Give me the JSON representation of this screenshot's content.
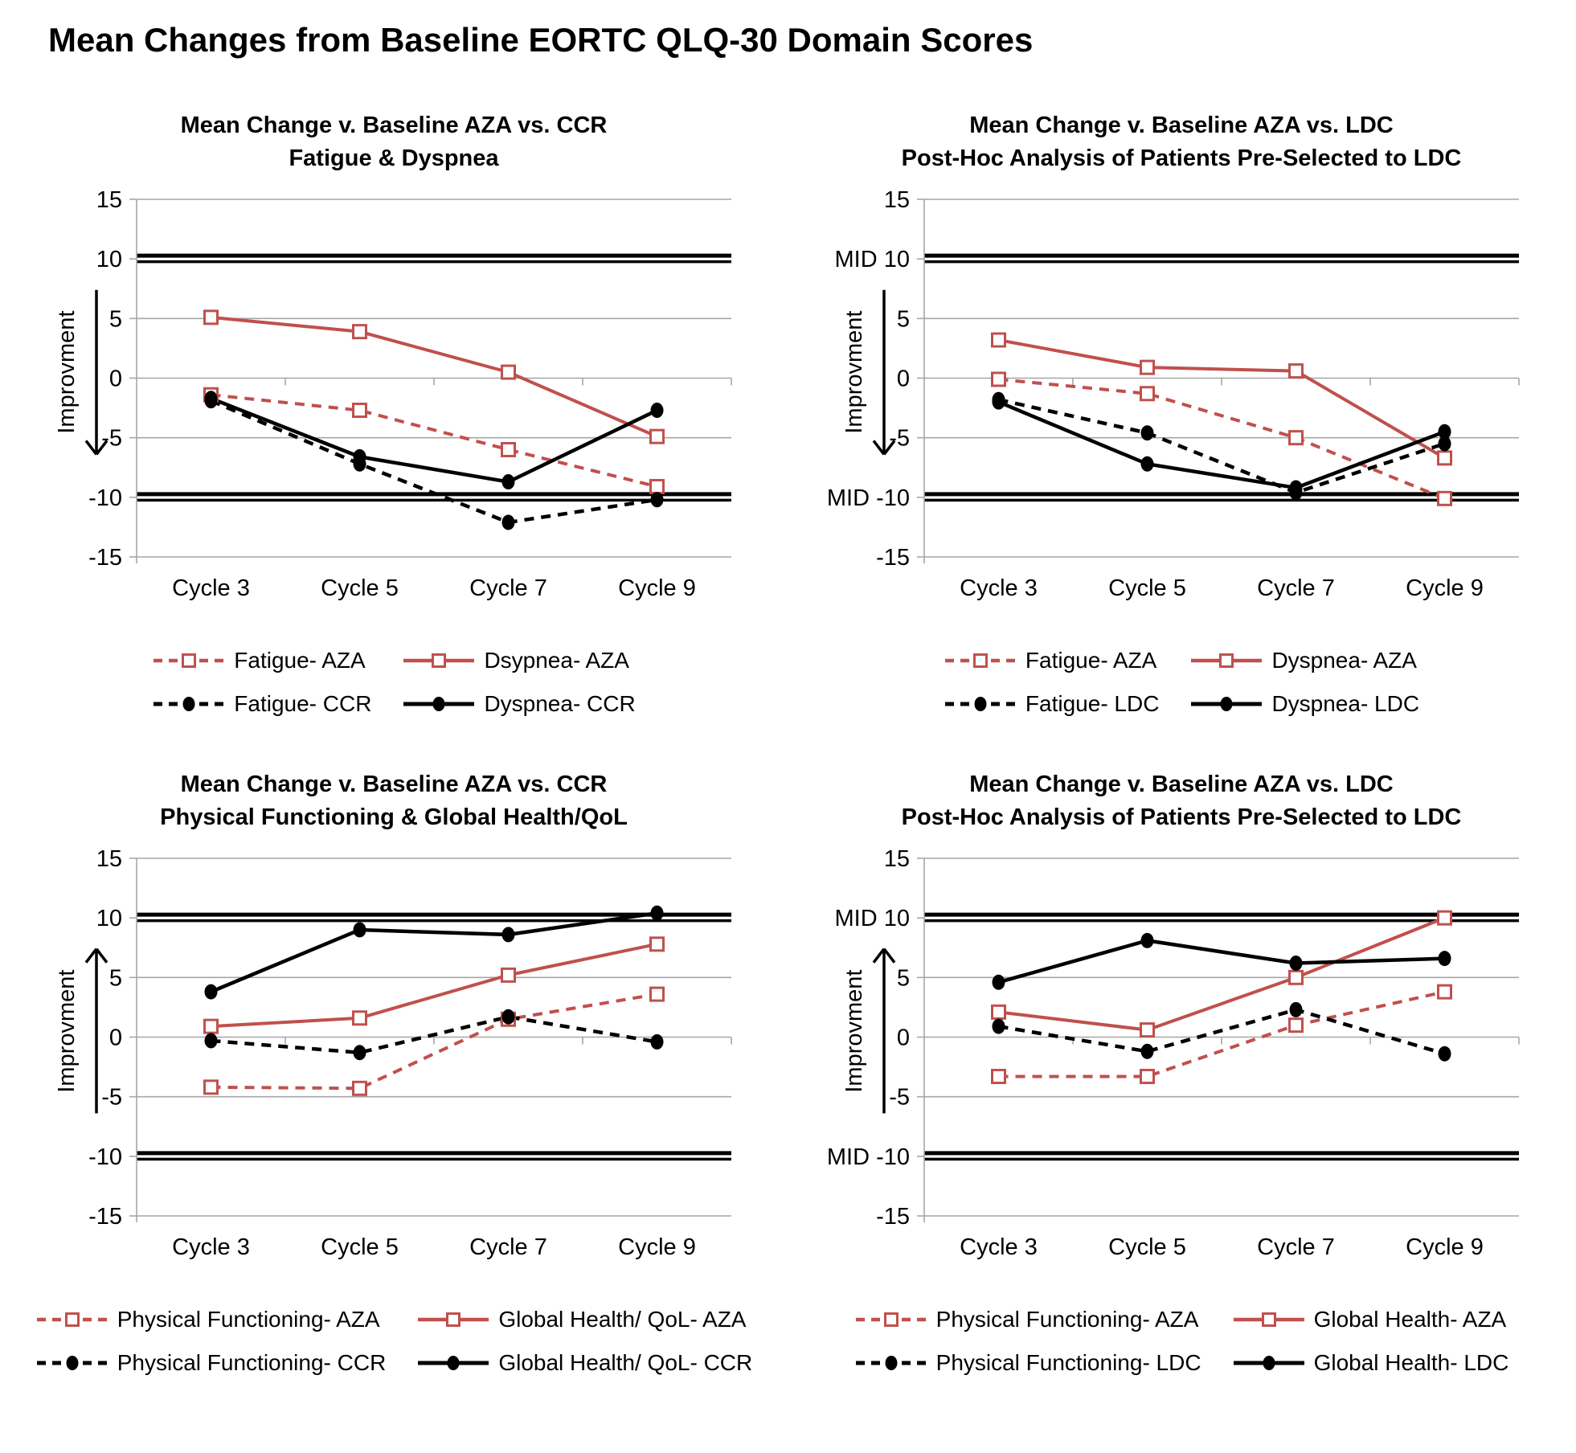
{
  "page": {
    "title": "Mean Changes from Baseline EORTC QLQ-30 Domain Scores"
  },
  "labels": {
    "improvement": "Improvment",
    "mid": "MID"
  },
  "chart_data": [
    {
      "type": "line",
      "title_line1": "Mean Change v. Baseline AZA vs. CCR",
      "title_line2": "Fatigue & Dyspnea",
      "categories": [
        "Cycle 3",
        "Cycle 5",
        "Cycle 7",
        "Cycle 9"
      ],
      "ylim": [
        -15,
        15
      ],
      "y_ticks": [
        15,
        10,
        5,
        0,
        -5,
        -10,
        -15
      ],
      "y_axis_labels": [
        "15",
        "10",
        "5",
        "0",
        "-5",
        "-10",
        "-15"
      ],
      "mid_lines": [
        10,
        -10
      ],
      "grid": true,
      "legend_position": "bottom",
      "ylabel": "Improvment",
      "improvement_direction": "down",
      "series": [
        {
          "name": "Fatigue- AZA",
          "color": "#C0504D",
          "line": "dashed",
          "marker": "open-square",
          "values": [
            -1.4,
            -2.7,
            -6.0,
            -9.1
          ]
        },
        {
          "name": "Dsypnea- AZA",
          "color": "#C0504D",
          "line": "solid",
          "marker": "open-square",
          "values": [
            5.1,
            3.9,
            0.5,
            -4.9
          ]
        },
        {
          "name": "Fatigue- CCR",
          "color": "#000000",
          "line": "dashed",
          "marker": "filled-circle",
          "values": [
            -1.9,
            -7.2,
            -12.1,
            -10.2
          ]
        },
        {
          "name": "Dyspnea- CCR",
          "color": "#000000",
          "line": "solid",
          "marker": "filled-circle",
          "values": [
            -1.7,
            -6.6,
            -8.7,
            -2.7
          ]
        }
      ]
    },
    {
      "type": "line",
      "title_line1": "Mean Change v. Baseline AZA vs. LDC",
      "title_line2": "Post-Hoc Analysis of  Patients Pre-Selected to LDC",
      "categories": [
        "Cycle 3",
        "Cycle 5",
        "Cycle 7",
        "Cycle 9"
      ],
      "ylim": [
        -15,
        15
      ],
      "y_ticks": [
        15,
        10,
        5,
        0,
        -5,
        -10,
        -15
      ],
      "y_axis_labels": [
        "15",
        "MID 10",
        "5",
        "0",
        "-5",
        "MID -10",
        "-15"
      ],
      "mid_lines": [
        10,
        -10
      ],
      "grid": true,
      "legend_position": "bottom",
      "ylabel": "Improvment",
      "improvement_direction": "down",
      "series": [
        {
          "name": "Fatigue- AZA",
          "color": "#C0504D",
          "line": "dashed",
          "marker": "open-square",
          "values": [
            -0.1,
            -1.3,
            -5.0,
            -10.1
          ]
        },
        {
          "name": "Dyspnea- AZA",
          "color": "#C0504D",
          "line": "solid",
          "marker": "open-square",
          "values": [
            3.2,
            0.9,
            0.6,
            -6.7
          ]
        },
        {
          "name": "Fatigue- LDC",
          "color": "#000000",
          "line": "dashed",
          "marker": "filled-circle",
          "values": [
            -1.8,
            -4.6,
            -9.6,
            -5.5
          ]
        },
        {
          "name": "Dyspnea- LDC",
          "color": "#000000",
          "line": "solid",
          "marker": "filled-circle",
          "values": [
            -2.0,
            -7.2,
            -9.2,
            -4.5
          ]
        }
      ]
    },
    {
      "type": "line",
      "title_line1": "Mean Change v. Baseline AZA vs. CCR",
      "title_line2": "Physical Functioning & Global Health/QoL",
      "categories": [
        "Cycle 3",
        "Cycle 5",
        "Cycle 7",
        "Cycle 9"
      ],
      "ylim": [
        -15,
        15
      ],
      "y_ticks": [
        15,
        10,
        5,
        0,
        -5,
        -10,
        -15
      ],
      "y_axis_labels": [
        "15",
        "10",
        "5",
        "0",
        "-5",
        "-10",
        "-15"
      ],
      "mid_lines": [
        10,
        -10
      ],
      "grid": true,
      "legend_position": "bottom",
      "ylabel": "Improvment",
      "improvement_direction": "up",
      "series": [
        {
          "name": "Physical Functioning- AZA",
          "color": "#C0504D",
          "line": "dashed",
          "marker": "open-square",
          "values": [
            -4.2,
            -4.3,
            1.5,
            3.6
          ]
        },
        {
          "name": "Global Health/ QoL- AZA",
          "color": "#C0504D",
          "line": "solid",
          "marker": "open-square",
          "values": [
            0.9,
            1.6,
            5.2,
            7.8
          ]
        },
        {
          "name": "Physical Functioning- CCR",
          "color": "#000000",
          "line": "dashed",
          "marker": "filled-circle",
          "values": [
            -0.3,
            -1.3,
            1.7,
            -0.4
          ]
        },
        {
          "name": "Global Health/ QoL- CCR",
          "color": "#000000",
          "line": "solid",
          "marker": "filled-circle",
          "values": [
            3.8,
            9.0,
            8.6,
            10.4
          ]
        }
      ]
    },
    {
      "type": "line",
      "title_line1": "Mean Change v. Baseline AZA vs. LDC",
      "title_line2": "Post-Hoc Analysis of  Patients Pre-Selected to LDC",
      "categories": [
        "Cycle 3",
        "Cycle 5",
        "Cycle 7",
        "Cycle 9"
      ],
      "ylim": [
        -15,
        15
      ],
      "y_ticks": [
        15,
        10,
        5,
        0,
        -5,
        -10,
        -15
      ],
      "y_axis_labels": [
        "15",
        "MID 10",
        "5",
        "0",
        "-5",
        "MID -10",
        "-15"
      ],
      "mid_lines": [
        10,
        -10
      ],
      "grid": true,
      "legend_position": "bottom",
      "ylabel": "Improvment",
      "improvement_direction": "up",
      "series": [
        {
          "name": "Physical Functioning- AZA",
          "color": "#C0504D",
          "line": "dashed",
          "marker": "open-square",
          "values": [
            -3.3,
            -3.3,
            1.0,
            3.8
          ]
        },
        {
          "name": "Global Health- AZA",
          "color": "#C0504D",
          "line": "solid",
          "marker": "open-square",
          "values": [
            2.1,
            0.6,
            5.0,
            10.0
          ]
        },
        {
          "name": "Physical Functioning- LDC",
          "color": "#000000",
          "line": "dashed",
          "marker": "filled-circle",
          "values": [
            0.9,
            -1.2,
            2.3,
            -1.4
          ]
        },
        {
          "name": "Global Health- LDC",
          "color": "#000000",
          "line": "solid",
          "marker": "filled-circle",
          "values": [
            4.6,
            8.1,
            6.2,
            6.6
          ]
        }
      ]
    }
  ]
}
